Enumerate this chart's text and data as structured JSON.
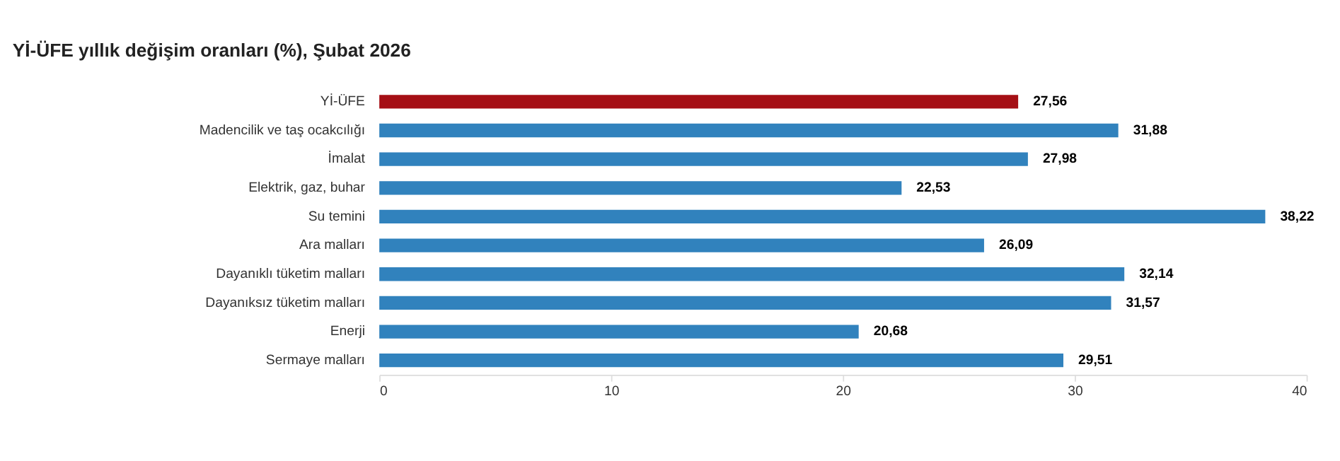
{
  "chart_data": {
    "type": "bar",
    "orientation": "horizontal",
    "title": "Yİ-ÜFE yıllık değişim oranları (%), Şubat 2026",
    "categories": [
      "Yİ-ÜFE",
      "Madencilik ve taş ocakcılığı",
      "İmalat",
      "Elektrik, gaz, buhar",
      "Su temini",
      "Ara malları",
      "Dayanıklı tüketim malları",
      "Dayanıksız tüketim malları",
      "Enerji",
      "Sermaye malları"
    ],
    "values": [
      27.56,
      31.88,
      27.98,
      22.53,
      38.22,
      26.09,
      32.14,
      31.57,
      20.68,
      29.51
    ],
    "value_labels": [
      "27,56",
      "31,88",
      "27,98",
      "22,53",
      "38,22",
      "26,09",
      "32,14",
      "31,57",
      "20,68",
      "29,51"
    ],
    "colors": [
      "#a50f15",
      "#3182bd",
      "#3182bd",
      "#3182bd",
      "#3182bd",
      "#3182bd",
      "#3182bd",
      "#3182bd",
      "#3182bd",
      "#3182bd"
    ],
    "xlim": [
      0,
      40
    ],
    "xticks": [
      0,
      10,
      20,
      30,
      40
    ],
    "grid": false
  }
}
